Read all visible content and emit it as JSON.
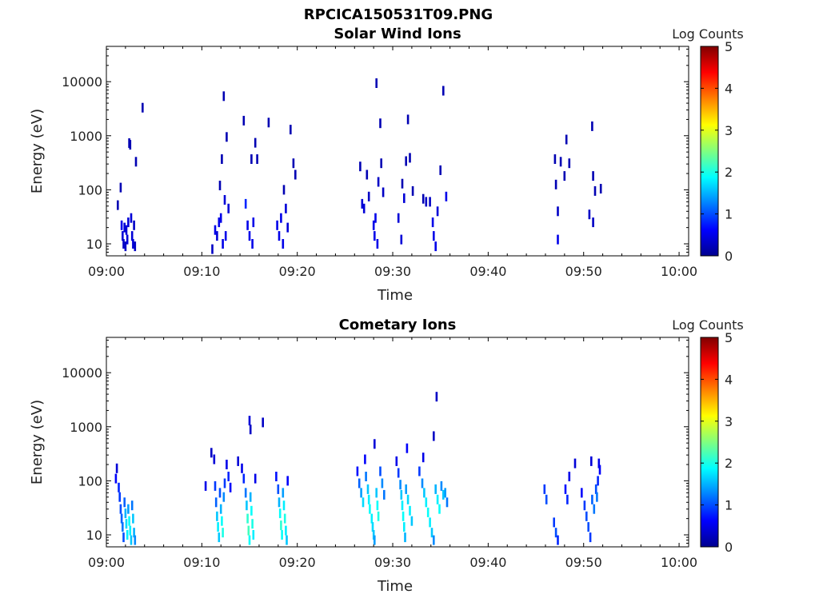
{
  "figure_title": "RPCICA150531T09.PNG",
  "chart_data": [
    {
      "type": "heatmap",
      "title": "Solar Wind Ions",
      "xlabel": "Time",
      "ylabel": "Energy (eV)",
      "x_ticks": [
        "09:00",
        "09:10",
        "09:20",
        "09:30",
        "09:40",
        "09:50",
        "10:00"
      ],
      "y_ticks": [
        "10",
        "100",
        "1000",
        "10000"
      ],
      "y_scale": "log",
      "xlim": [
        0,
        61
      ],
      "ylim": [
        6,
        45000
      ],
      "colorbar": {
        "label": "Log Counts",
        "range": [
          0,
          5
        ],
        "ticks": [
          "0",
          "1",
          "2",
          "3",
          "4",
          "5"
        ]
      },
      "colormap": [
        "#00008f",
        "#0000ff",
        "#0080ff",
        "#00ffff",
        "#80ff80",
        "#ffff00",
        "#ff8000",
        "#ff0000",
        "#800000"
      ],
      "points": [
        [
          1.2,
          52,
          0.2
        ],
        [
          1.5,
          110,
          0.2
        ],
        [
          1.6,
          22,
          0.5
        ],
        [
          1.7,
          14,
          0.4
        ],
        [
          1.8,
          10,
          0.3
        ],
        [
          1.9,
          20,
          0.4
        ],
        [
          2.0,
          9,
          0.3
        ],
        [
          2.1,
          18,
          0.4
        ],
        [
          2.2,
          12,
          0.4
        ],
        [
          2.3,
          25,
          0.4
        ],
        [
          2.4,
          730,
          0.2
        ],
        [
          2.5,
          680,
          0.2
        ],
        [
          2.6,
          30,
          0.4
        ],
        [
          2.7,
          14,
          0.4
        ],
        [
          2.8,
          10,
          0.4
        ],
        [
          2.9,
          22,
          0.3
        ],
        [
          3.1,
          330,
          0.2
        ],
        [
          3.0,
          9,
          0.3
        ],
        [
          3.8,
          3300,
          0.2
        ],
        [
          11.1,
          8,
          0.3
        ],
        [
          11.4,
          18,
          0.5
        ],
        [
          11.6,
          14,
          0.4
        ],
        [
          11.8,
          25,
          0.5
        ],
        [
          11.9,
          120,
          0.2
        ],
        [
          12.0,
          30,
          0.5
        ],
        [
          12.1,
          370,
          0.2
        ],
        [
          12.2,
          10,
          0.5
        ],
        [
          12.3,
          5400,
          0.2
        ],
        [
          12.4,
          65,
          0.4
        ],
        [
          12.5,
          14,
          0.5
        ],
        [
          12.6,
          950,
          0.2
        ],
        [
          12.8,
          45,
          0.4
        ],
        [
          14.4,
          1900,
          0.2
        ],
        [
          14.6,
          55,
          0.8
        ],
        [
          14.8,
          22,
          0.5
        ],
        [
          15.0,
          14,
          0.5
        ],
        [
          15.2,
          370,
          0.2
        ],
        [
          15.3,
          10,
          0.5
        ],
        [
          15.4,
          25,
          0.5
        ],
        [
          15.6,
          740,
          0.2
        ],
        [
          15.8,
          370,
          0.2
        ],
        [
          17.0,
          1750,
          0.2
        ],
        [
          17.9,
          22,
          0.5
        ],
        [
          18.1,
          14,
          0.5
        ],
        [
          18.3,
          30,
          0.5
        ],
        [
          18.5,
          10,
          0.5
        ],
        [
          18.6,
          100,
          0.2
        ],
        [
          18.8,
          45,
          0.4
        ],
        [
          19.0,
          20,
          0.4
        ],
        [
          19.3,
          1300,
          0.2
        ],
        [
          19.6,
          310,
          0.2
        ],
        [
          19.8,
          190,
          0.2
        ],
        [
          26.6,
          270,
          0.2
        ],
        [
          26.8,
          55,
          0.4
        ],
        [
          27.0,
          45,
          0.4
        ],
        [
          27.3,
          190,
          0.2
        ],
        [
          27.5,
          75,
          0.3
        ],
        [
          28.0,
          22,
          0.5
        ],
        [
          28.1,
          14,
          0.5
        ],
        [
          28.2,
          30,
          0.5
        ],
        [
          28.3,
          9400,
          0.2
        ],
        [
          28.4,
          10,
          0.5
        ],
        [
          28.5,
          140,
          0.3
        ],
        [
          28.7,
          1700,
          0.2
        ],
        [
          28.8,
          310,
          0.2
        ],
        [
          29.0,
          90,
          0.3
        ],
        [
          30.6,
          30,
          0.4
        ],
        [
          30.9,
          12,
          0.4
        ],
        [
          31.0,
          130,
          0.2
        ],
        [
          31.2,
          70,
          0.4
        ],
        [
          31.4,
          340,
          0.2
        ],
        [
          31.6,
          2000,
          0.2
        ],
        [
          31.8,
          390,
          0.2
        ],
        [
          32.1,
          95,
          0.2
        ],
        [
          33.2,
          68,
          0.2
        ],
        [
          33.5,
          60,
          0.3
        ],
        [
          33.9,
          60,
          0.3
        ],
        [
          34.2,
          25,
          0.5
        ],
        [
          34.3,
          14,
          0.5
        ],
        [
          34.5,
          9,
          0.5
        ],
        [
          34.7,
          40,
          0.4
        ],
        [
          35.0,
          230,
          0.2
        ],
        [
          35.3,
          6800,
          0.2
        ],
        [
          35.6,
          75,
          0.5
        ],
        [
          47.0,
          370,
          0.2
        ],
        [
          47.1,
          125,
          0.2
        ],
        [
          47.3,
          40,
          0.3
        ],
        [
          47.3,
          12,
          0.5
        ],
        [
          47.6,
          330,
          0.2
        ],
        [
          48.0,
          180,
          0.2
        ],
        [
          48.2,
          850,
          0.2
        ],
        [
          48.5,
          310,
          0.2
        ],
        [
          50.6,
          35,
          0.3
        ],
        [
          50.9,
          1500,
          0.2
        ],
        [
          51.0,
          25,
          0.3
        ],
        [
          51.0,
          180,
          0.2
        ],
        [
          51.2,
          95,
          0.2
        ],
        [
          51.8,
          105,
          0.2
        ]
      ]
    },
    {
      "type": "heatmap",
      "title": "Cometary Ions",
      "xlabel": "Time",
      "ylabel": "Energy (eV)",
      "x_ticks": [
        "09:00",
        "09:10",
        "09:20",
        "09:30",
        "09:40",
        "09:50",
        "10:00"
      ],
      "y_ticks": [
        "10",
        "100",
        "1000",
        "10000"
      ],
      "y_scale": "log",
      "xlim": [
        0,
        61
      ],
      "ylim": [
        6,
        45000
      ],
      "colorbar": {
        "label": "Log Counts",
        "range": [
          0,
          5
        ],
        "ticks": [
          "0",
          "1",
          "2",
          "3",
          "4",
          "5"
        ]
      },
      "colormap": [
        "#00008f",
        "#0000ff",
        "#0080ff",
        "#00ffff",
        "#80ff80",
        "#ffff00",
        "#ff8000",
        "#ff0000",
        "#800000"
      ],
      "points": [
        [
          1.0,
          110,
          0.6
        ],
        [
          1.1,
          170,
          0.4
        ],
        [
          1.3,
          75,
          0.8
        ],
        [
          1.4,
          50,
          0.9
        ],
        [
          1.5,
          30,
          1.0
        ],
        [
          1.6,
          20,
          1.1
        ],
        [
          1.7,
          14,
          1.2
        ],
        [
          1.8,
          9,
          1.0
        ],
        [
          1.9,
          40,
          1.1
        ],
        [
          2.0,
          25,
          1.5
        ],
        [
          2.1,
          16,
          1.7
        ],
        [
          2.2,
          10,
          1.8
        ],
        [
          2.3,
          30,
          1.4
        ],
        [
          2.4,
          18,
          1.9
        ],
        [
          2.5,
          12,
          1.8
        ],
        [
          2.6,
          8,
          1.6
        ],
        [
          2.7,
          35,
          1.2
        ],
        [
          2.8,
          20,
          1.6
        ],
        [
          2.9,
          11,
          1.5
        ],
        [
          3.0,
          8,
          1.3
        ],
        [
          10.4,
          80,
          0.5
        ],
        [
          11.0,
          330,
          0.3
        ],
        [
          11.3,
          250,
          0.4
        ],
        [
          11.4,
          80,
          0.9
        ],
        [
          11.5,
          40,
          1.1
        ],
        [
          11.6,
          22,
          1.6
        ],
        [
          11.7,
          14,
          1.8
        ],
        [
          11.8,
          9,
          1.6
        ],
        [
          11.9,
          60,
          1.0
        ],
        [
          12.0,
          30,
          1.5
        ],
        [
          12.1,
          18,
          1.9
        ],
        [
          12.2,
          11,
          2.0
        ],
        [
          12.3,
          50,
          1.3
        ],
        [
          12.4,
          90,
          0.9
        ],
        [
          12.6,
          200,
          0.5
        ],
        [
          12.8,
          120,
          0.8
        ],
        [
          13.0,
          75,
          0.6
        ],
        [
          13.8,
          230,
          0.4
        ],
        [
          14.2,
          170,
          0.5
        ],
        [
          14.4,
          110,
          0.8
        ],
        [
          14.6,
          60,
          1.2
        ],
        [
          14.7,
          35,
          1.6
        ],
        [
          14.8,
          20,
          2.1
        ],
        [
          14.9,
          12,
          2.2
        ],
        [
          15.0,
          8,
          1.9
        ],
        [
          15.1,
          50,
          1.5
        ],
        [
          15.2,
          28,
          1.9
        ],
        [
          15.3,
          16,
          2.0
        ],
        [
          15.4,
          10,
          1.8
        ],
        [
          15.0,
          1300,
          0.4
        ],
        [
          15.1,
          890,
          0.3
        ],
        [
          15.6,
          110,
          0.5
        ],
        [
          16.4,
          1200,
          0.3
        ],
        [
          17.8,
          120,
          0.7
        ],
        [
          18.0,
          70,
          1.0
        ],
        [
          18.1,
          40,
          1.5
        ],
        [
          18.2,
          25,
          1.9
        ],
        [
          18.3,
          15,
          2.1
        ],
        [
          18.4,
          10,
          1.9
        ],
        [
          18.5,
          60,
          1.4
        ],
        [
          18.6,
          35,
          1.8
        ],
        [
          18.7,
          20,
          2.0
        ],
        [
          18.8,
          12,
          1.8
        ],
        [
          18.9,
          8,
          1.6
        ],
        [
          19.0,
          100,
          0.6
        ],
        [
          26.3,
          150,
          0.7
        ],
        [
          26.5,
          90,
          1.1
        ],
        [
          26.7,
          60,
          1.4
        ],
        [
          26.9,
          40,
          1.7
        ],
        [
          27.1,
          250,
          0.6
        ],
        [
          27.2,
          120,
          1.2
        ],
        [
          27.4,
          70,
          1.6
        ],
        [
          27.5,
          45,
          1.8
        ],
        [
          27.6,
          30,
          1.9
        ],
        [
          27.8,
          20,
          1.8
        ],
        [
          27.9,
          14,
          1.7
        ],
        [
          28.0,
          10,
          1.6
        ],
        [
          28.1,
          8,
          1.4
        ],
        [
          28.3,
          60,
          1.6
        ],
        [
          28.4,
          35,
          1.9
        ],
        [
          28.5,
          22,
          2.0
        ],
        [
          28.7,
          150,
          1.0
        ],
        [
          28.9,
          90,
          1.3
        ],
        [
          29.1,
          55,
          1.2
        ],
        [
          28.1,
          480,
          0.4
        ],
        [
          30.4,
          230,
          0.5
        ],
        [
          30.6,
          140,
          0.9
        ],
        [
          30.8,
          85,
          1.3
        ],
        [
          30.9,
          55,
          1.6
        ],
        [
          31.0,
          35,
          1.8
        ],
        [
          31.1,
          22,
          1.9
        ],
        [
          31.2,
          14,
          1.8
        ],
        [
          31.3,
          9,
          1.5
        ],
        [
          31.4,
          70,
          1.4
        ],
        [
          31.5,
          400,
          0.6
        ],
        [
          31.6,
          45,
          1.7
        ],
        [
          31.8,
          28,
          1.8
        ],
        [
          32.0,
          18,
          1.6
        ],
        [
          32.8,
          150,
          0.9
        ],
        [
          33.1,
          90,
          1.3
        ],
        [
          33.3,
          60,
          1.6
        ],
        [
          33.5,
          40,
          1.8
        ],
        [
          33.7,
          26,
          1.9
        ],
        [
          33.9,
          17,
          1.8
        ],
        [
          34.1,
          11,
          1.6
        ],
        [
          34.3,
          8,
          1.3
        ],
        [
          34.5,
          70,
          1.5
        ],
        [
          34.7,
          45,
          1.8
        ],
        [
          34.9,
          30,
          1.9
        ],
        [
          35.1,
          80,
          1.3
        ],
        [
          35.3,
          55,
          1.6
        ],
        [
          35.5,
          60,
          1.4
        ],
        [
          35.7,
          40,
          1.2
        ],
        [
          33.2,
          270,
          0.5
        ],
        [
          34.6,
          3600,
          0.3
        ],
        [
          34.3,
          670,
          0.3
        ],
        [
          45.9,
          70,
          0.9
        ],
        [
          46.1,
          45,
          1.0
        ],
        [
          46.9,
          17,
          0.9
        ],
        [
          47.1,
          11,
          1.0
        ],
        [
          47.3,
          8,
          0.8
        ],
        [
          48.1,
          70,
          0.7
        ],
        [
          48.3,
          45,
          0.8
        ],
        [
          48.5,
          120,
          0.5
        ],
        [
          49.1,
          210,
          0.4
        ],
        [
          49.8,
          60,
          0.6
        ],
        [
          50.1,
          35,
          0.9
        ],
        [
          50.3,
          22,
          1.0
        ],
        [
          50.5,
          14,
          1.0
        ],
        [
          50.7,
          9,
          0.9
        ],
        [
          50.9,
          45,
          1.1
        ],
        [
          51.1,
          30,
          1.2
        ],
        [
          51.3,
          70,
          1.0
        ],
        [
          51.4,
          50,
          1.2
        ],
        [
          51.5,
          100,
          0.8
        ],
        [
          51.7,
          160,
          0.6
        ],
        [
          50.8,
          230,
          0.4
        ],
        [
          51.6,
          210,
          0.5
        ]
      ]
    }
  ]
}
